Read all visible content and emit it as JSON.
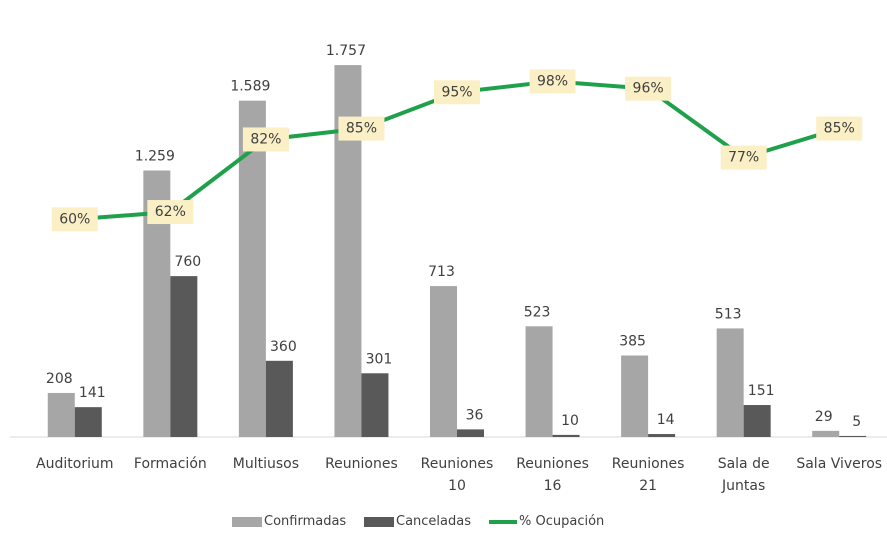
{
  "chart_data": {
    "type": "bar",
    "categories": [
      "Auditorium",
      "Formación",
      "Multiusos",
      "Reuniones",
      "Reuniones\n10",
      "Reuniones\n16",
      "Reuniones\n21",
      "Sala de\nJuntas",
      "Sala Viveros"
    ],
    "series": [
      {
        "name": "Confirmadas",
        "color": "#a6a6a6",
        "values": [
          208,
          1259,
          1589,
          1757,
          713,
          523,
          385,
          513,
          29
        ],
        "value_labels": [
          "208",
          "1.259",
          "1.589",
          "1.757",
          "713",
          "523",
          "385",
          "513",
          "29"
        ]
      },
      {
        "name": "Canceladas",
        "color": "#595959",
        "values": [
          141,
          760,
          360,
          301,
          36,
          10,
          14,
          151,
          5
        ]
      },
      {
        "name": "% Ocupación",
        "type": "line",
        "axis": "y2",
        "color": "#1fa04a",
        "values": [
          60,
          62,
          82,
          85,
          95,
          98,
          96,
          77,
          85
        ],
        "value_labels": [
          "60%",
          "62%",
          "82%",
          "85%",
          "95%",
          "98%",
          "96%",
          "77%",
          "85%"
        ]
      }
    ],
    "ylim": [
      0,
      1800
    ],
    "y2lim": [
      0,
      105
    ],
    "grid": false,
    "legend": "bottom"
  }
}
